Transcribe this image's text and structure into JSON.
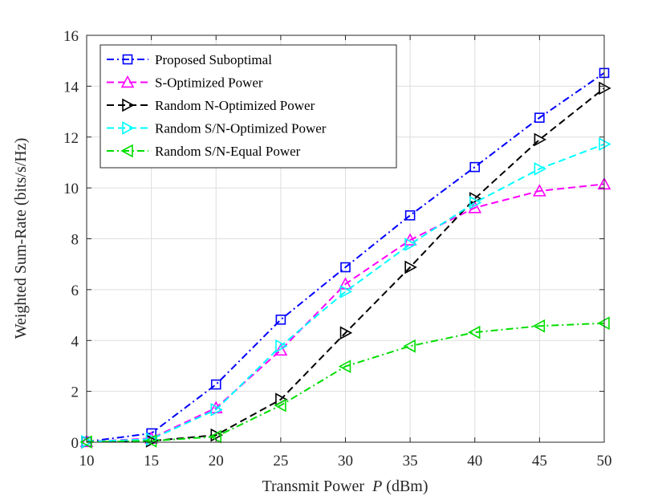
{
  "chart_data": {
    "type": "line",
    "title": "",
    "xlabel": "Transmit Power  P (dBm)",
    "xlabel_parts": {
      "text": "Transmit Power",
      "var": "P",
      "unit": "(dBm)"
    },
    "ylabel": "Weighted Sum-Rate (bits/s/Hz)",
    "xlim": [
      10,
      50
    ],
    "ylim": [
      0,
      16
    ],
    "xticks": [
      10,
      15,
      20,
      25,
      30,
      35,
      40,
      45,
      50
    ],
    "yticks": [
      0,
      2,
      4,
      6,
      8,
      10,
      12,
      14,
      16
    ],
    "grid": true,
    "legend_position": "top-left",
    "x": [
      10,
      15,
      20,
      25,
      30,
      35,
      40,
      45,
      50
    ],
    "series": [
      {
        "name": "Proposed Suboptimal",
        "color": "#0000ff",
        "marker": "square",
        "dash": "dashdot",
        "values": [
          0.02,
          0.35,
          2.27,
          4.82,
          6.88,
          8.92,
          10.82,
          12.76,
          14.52
        ]
      },
      {
        "name": "S-Optimized Power",
        "color": "#ff00ff",
        "marker": "triangle-up",
        "dash": "dashed",
        "values": [
          0.02,
          0.15,
          1.35,
          3.62,
          6.22,
          7.95,
          9.22,
          9.88,
          10.15
        ]
      },
      {
        "name": "Random N-Optimized Power",
        "color": "#000000",
        "marker": "triangle-right",
        "dash": "dashed",
        "values": [
          0.01,
          0.05,
          0.28,
          1.68,
          4.3,
          6.88,
          9.58,
          11.9,
          13.92
        ]
      },
      {
        "name": "Random S/N-Optimized Power",
        "color": "#00ffff",
        "marker": "triangle-right",
        "dash": "dashed",
        "values": [
          0.02,
          0.12,
          1.28,
          3.78,
          5.92,
          7.78,
          9.42,
          10.75,
          11.72
        ]
      },
      {
        "name": "Random S/N-Equal Power",
        "color": "#00dd00",
        "marker": "triangle-left",
        "dash": "dashdot",
        "values": [
          0.01,
          0.05,
          0.22,
          1.45,
          2.98,
          3.78,
          4.32,
          4.57,
          4.68
        ]
      }
    ]
  }
}
